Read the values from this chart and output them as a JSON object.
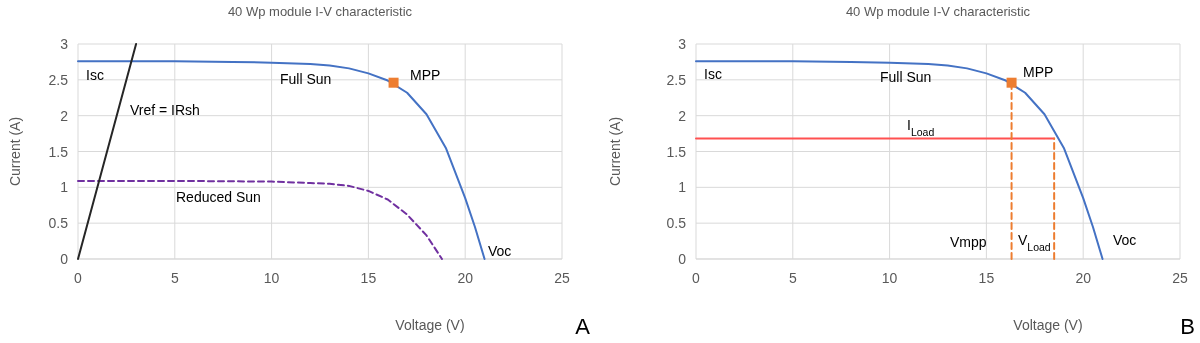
{
  "chart_data": [
    {
      "type": "line",
      "title": "40 Wp module I-V characteristic",
      "xlabel": "Voltage (V)",
      "ylabel": "Current (A)",
      "xlim": [
        0,
        25
      ],
      "ylim": [
        0,
        3
      ],
      "xticks": [
        0,
        5,
        10,
        15,
        20,
        25
      ],
      "yticks": [
        0,
        0.5,
        1,
        1.5,
        2,
        2.5,
        3
      ],
      "grid": true,
      "series": [
        {
          "type": "line",
          "color": "#4472c4",
          "line_style": "solid",
          "marker": "none",
          "x": [
            0,
            5,
            8,
            10,
            12,
            13,
            14,
            15,
            16,
            17,
            18,
            19,
            20,
            20.5,
            21
          ],
          "values": [
            2.76,
            2.76,
            2.75,
            2.74,
            2.72,
            2.7,
            2.66,
            2.59,
            2.49,
            2.32,
            2.02,
            1.55,
            0.85,
            0.45,
            0
          ]
        },
        {
          "type": "line",
          "color": "#7030a0",
          "line_style": "dashed",
          "marker": "none",
          "x": [
            0,
            5,
            10,
            12,
            13,
            14,
            15,
            16,
            17,
            18,
            18.8
          ],
          "values": [
            1.09,
            1.09,
            1.08,
            1.06,
            1.05,
            1.02,
            0.95,
            0.83,
            0.62,
            0.33,
            0
          ]
        },
        {
          "type": "line",
          "color": "#262626",
          "line_style": "solid",
          "marker": "none",
          "x": [
            0,
            3
          ],
          "values": [
            0,
            3
          ]
        },
        {
          "type": "scatter",
          "color": "#ed7d31",
          "marker": "square",
          "x": [
            16.3
          ],
          "values": [
            2.46
          ]
        }
      ],
      "annotations": [
        "Isc",
        "Full Sun",
        "MPP",
        "Vref = IRsh",
        "Reduced Sun",
        "Voc",
        "A"
      ]
    },
    {
      "type": "line",
      "title": "40 Wp module I-V characteristic",
      "xlabel": "Voltage (V)",
      "ylabel": "Current (A)",
      "xlim": [
        0,
        25
      ],
      "ylim": [
        0,
        3
      ],
      "xticks": [
        0,
        5,
        10,
        15,
        20,
        25
      ],
      "yticks": [
        0,
        0.5,
        1,
        1.5,
        2,
        2.5,
        3
      ],
      "grid": true,
      "series": [
        {
          "type": "line",
          "color": "#4472c4",
          "line_style": "solid",
          "marker": "none",
          "x": [
            0,
            5,
            8,
            10,
            12,
            13,
            14,
            15,
            16,
            17,
            18,
            19,
            20,
            20.5,
            21
          ],
          "values": [
            2.76,
            2.76,
            2.75,
            2.74,
            2.72,
            2.7,
            2.66,
            2.59,
            2.49,
            2.32,
            2.02,
            1.55,
            0.85,
            0.45,
            0
          ]
        },
        {
          "type": "line",
          "color": "#ff5050",
          "line_style": "solid",
          "marker": "none",
          "x": [
            0,
            18.5
          ],
          "values": [
            1.68,
            1.68
          ]
        },
        {
          "type": "line",
          "color": "#ed7d31",
          "line_style": "dashed",
          "marker": "none",
          "x": [
            16.3,
            16.3
          ],
          "values": [
            0,
            2.46
          ]
        },
        {
          "type": "line",
          "color": "#ed7d31",
          "line_style": "dashed",
          "marker": "none",
          "x": [
            18.5,
            18.5
          ],
          "values": [
            0,
            1.68
          ]
        },
        {
          "type": "scatter",
          "color": "#ed7d31",
          "marker": "square",
          "x": [
            16.3
          ],
          "values": [
            2.46
          ]
        }
      ],
      "annotations": [
        "Isc",
        "Full Sun",
        "MPP",
        "I$_{Load}$",
        "Vmpp",
        "V$_{Load}$",
        "Voc",
        "B"
      ]
    }
  ]
}
